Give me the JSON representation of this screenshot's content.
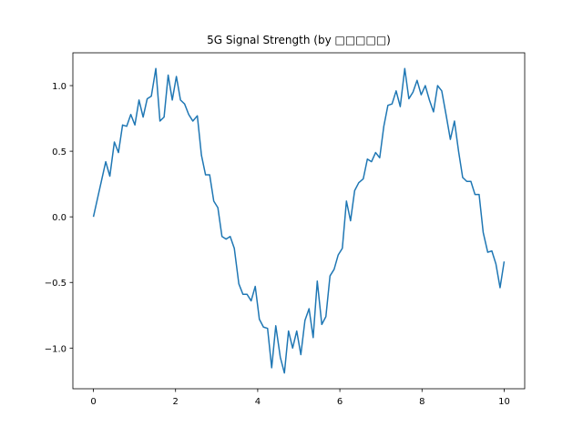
{
  "chart_data": {
    "type": "line",
    "title": "5G Signal Strength (by □□□□□)",
    "x": [
      0,
      0.1,
      0.2,
      0.3,
      0.4,
      0.51,
      0.61,
      0.71,
      0.81,
      0.91,
      1.01,
      1.11,
      1.21,
      1.31,
      1.41,
      1.52,
      1.62,
      1.72,
      1.82,
      1.92,
      2.02,
      2.12,
      2.22,
      2.32,
      2.42,
      2.53,
      2.63,
      2.73,
      2.83,
      2.93,
      3.03,
      3.13,
      3.23,
      3.33,
      3.43,
      3.54,
      3.64,
      3.74,
      3.84,
      3.94,
      4.04,
      4.14,
      4.24,
      4.34,
      4.44,
      4.55,
      4.65,
      4.75,
      4.85,
      4.95,
      5.05,
      5.15,
      5.25,
      5.35,
      5.45,
      5.56,
      5.66,
      5.76,
      5.86,
      5.96,
      6.06,
      6.16,
      6.26,
      6.36,
      6.46,
      6.57,
      6.67,
      6.77,
      6.87,
      6.97,
      7.07,
      7.17,
      7.27,
      7.37,
      7.47,
      7.58,
      7.68,
      7.78,
      7.88,
      7.98,
      8.08,
      8.18,
      8.28,
      8.38,
      8.48,
      8.59,
      8.69,
      8.79,
      8.89,
      8.99,
      9.09,
      9.19,
      9.29,
      9.39,
      9.49,
      9.6,
      9.7,
      9.8,
      9.9,
      10
    ],
    "values": [
      0,
      0.14,
      0.28,
      0.42,
      0.31,
      0.57,
      0.49,
      0.7,
      0.69,
      0.78,
      0.7,
      0.89,
      0.76,
      0.9,
      0.92,
      1.13,
      0.73,
      0.76,
      1.08,
      0.89,
      1.07,
      0.89,
      0.86,
      0.78,
      0.73,
      0.77,
      0.47,
      0.32,
      0.32,
      0.12,
      0.07,
      -0.15,
      -0.17,
      -0.15,
      -0.24,
      -0.51,
      -0.59,
      -0.59,
      -0.64,
      -0.53,
      -0.78,
      -0.84,
      -0.85,
      -1.15,
      -0.83,
      -1.07,
      -1.19,
      -0.87,
      -1.0,
      -0.87,
      -1.05,
      -0.79,
      -0.7,
      -0.92,
      -0.49,
      -0.82,
      -0.76,
      -0.45,
      -0.4,
      -0.29,
      -0.24,
      0.12,
      -0.03,
      0.2,
      0.26,
      0.29,
      0.44,
      0.42,
      0.49,
      0.45,
      0.69,
      0.85,
      0.86,
      0.96,
      0.84,
      1.13,
      0.9,
      0.95,
      1.04,
      0.93,
      1.0,
      0.89,
      0.8,
      1.0,
      0.96,
      0.77,
      0.59,
      0.73,
      0.5,
      0.3,
      0.27,
      0.27,
      0.17,
      0.17,
      -0.12,
      -0.27,
      -0.26,
      -0.36,
      -0.54,
      -0.34
    ],
    "color": "#1f77b4",
    "xlim": [
      -0.5,
      10.5
    ],
    "xticks": [
      0,
      2,
      4,
      6,
      8,
      10
    ],
    "ylim": [
      -1.31,
      1.25
    ],
    "yticks": [
      {
        "value": -1,
        "label": "−1.0"
      },
      {
        "value": -0.5,
        "label": "−0.5"
      },
      {
        "value": 0,
        "label": "0.0"
      },
      0.5,
      {
        "value": 1,
        "label": "1.0"
      }
    ],
    "grid": false
  }
}
